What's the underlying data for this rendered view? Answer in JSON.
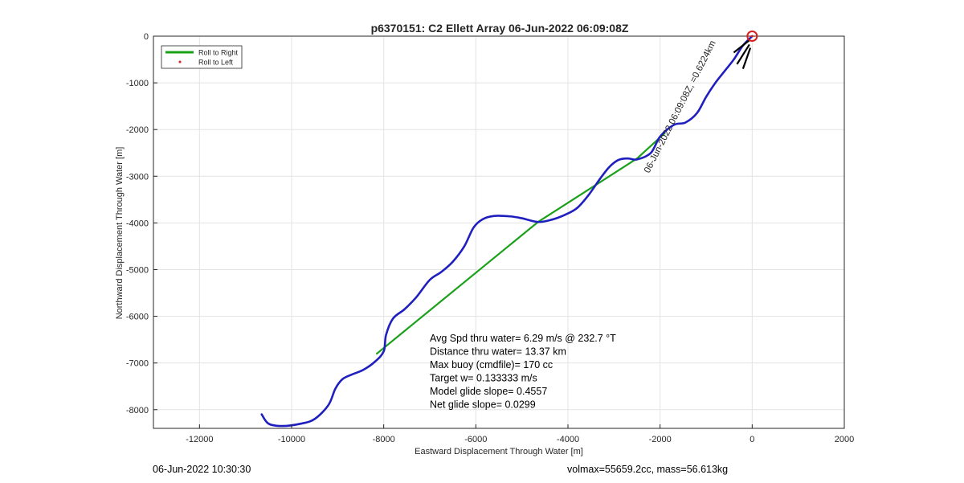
{
  "chart_data": {
    "type": "line",
    "title": "p6370151: C2 Ellett Array 06-Jun-2022 06:09:08Z",
    "xlabel": "Eastward Displacement Through Water [m]",
    "ylabel": "Northward Displacement Through Water [m]",
    "xlim": [
      -13000,
      2000
    ],
    "ylim": [
      -8400,
      0
    ],
    "xticks": [
      -12000,
      -10000,
      -8000,
      -6000,
      -4000,
      -2000,
      0,
      2000
    ],
    "yticks": [
      0,
      -1000,
      -2000,
      -3000,
      -4000,
      -5000,
      -6000,
      -7000,
      -8000
    ],
    "grid": true,
    "legend_position": "top-left",
    "legend": [
      {
        "label": "Roll to Right",
        "color": "#1aa01a",
        "style": "line"
      },
      {
        "label": "Roll to Left",
        "color": "#d62020",
        "style": "dot"
      }
    ],
    "series": [
      {
        "name": "Roll to Right",
        "color": "#1aa01a",
        "x": [
          -8150,
          -4650,
          -2500,
          -1900
        ],
        "y": [
          -6800,
          -3980,
          -2620,
          -2080
        ]
      },
      {
        "color": "#1f1fbf",
        "x": [
          -10650,
          -10500,
          -10200,
          -9800,
          -9500,
          -9200,
          -9050,
          -8900,
          -8700,
          -8450,
          -8200,
          -8000,
          -7950,
          -7800,
          -7550,
          -7300,
          -7000,
          -6750,
          -6500,
          -6250,
          -6050,
          -5850,
          -5600,
          -5250,
          -5000,
          -4650,
          -4350,
          -4050,
          -3800,
          -3550,
          -3300,
          -3100,
          -2900,
          -2700,
          -2500,
          -2200,
          -2000,
          -1700,
          -1450,
          -1200,
          -1000,
          -800,
          -600,
          -400,
          -200,
          0
        ],
        "y": [
          -8100,
          -8300,
          -8350,
          -8300,
          -8200,
          -7900,
          -7550,
          -7350,
          -7250,
          -7150,
          -6980,
          -6750,
          -6400,
          -6050,
          -5850,
          -5600,
          -5220,
          -5050,
          -4830,
          -4500,
          -4100,
          -3920,
          -3850,
          -3860,
          -3900,
          -3980,
          -3930,
          -3820,
          -3680,
          -3400,
          -3050,
          -2800,
          -2650,
          -2620,
          -2640,
          -2500,
          -2150,
          -1900,
          -1850,
          -1650,
          -1300,
          -1000,
          -750,
          -500,
          -200,
          0
        ]
      }
    ],
    "start_marker": {
      "x": 0,
      "y": 0,
      "color": "#d62020"
    },
    "annotations": [
      {
        "text": "06-Jun-2022 06:09:08Z, =0.6224km",
        "x": -2050,
        "y": -2900,
        "rotation_deg": -63
      }
    ]
  },
  "stats": [
    "Avg Spd thru water=  6.29 m/s @ 232.7 °T",
    "Distance thru water= 13.37 km",
    "Max buoy (cmdfile)= 170 cc",
    "Target w= 0.133333 m/s",
    "Model glide slope= 0.4557",
    "Net glide slope= 0.0299"
  ],
  "footer": {
    "left": "06-Jun-2022 10:30:30",
    "right": "volmax=55659.2cc, mass=56.613kg"
  }
}
